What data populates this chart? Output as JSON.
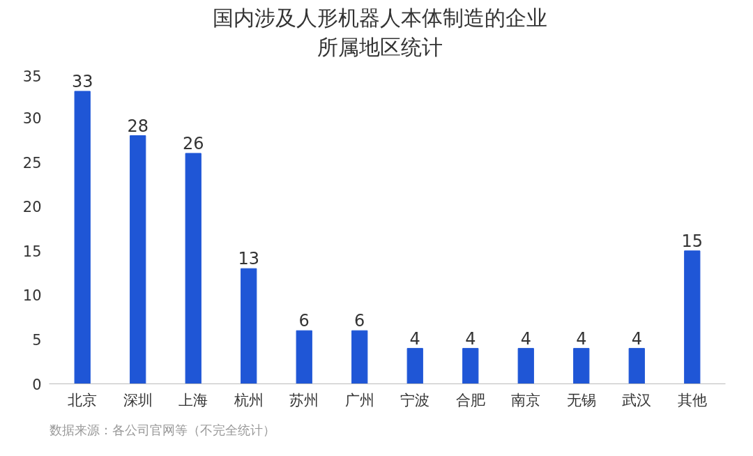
{
  "chart_data": {
    "type": "bar",
    "title": "国内涉及人形机器人本体制造的企业所属地区统计",
    "categories": [
      "北京",
      "深圳",
      "上海",
      "杭州",
      "苏州",
      "广州",
      "宁波",
      "合肥",
      "南京",
      "无锡",
      "武汉",
      "其他"
    ],
    "values": [
      33,
      28,
      26,
      13,
      6,
      6,
      4,
      4,
      4,
      4,
      4,
      15
    ],
    "color": "#1f56d6",
    "ylim": [
      0,
      35
    ],
    "yticks": [
      0,
      5,
      10,
      15,
      20,
      25,
      30,
      35
    ],
    "grid": false,
    "data_labels": true,
    "annotations": [
      "数据来源：各公司官网等（不完全统计）"
    ]
  }
}
